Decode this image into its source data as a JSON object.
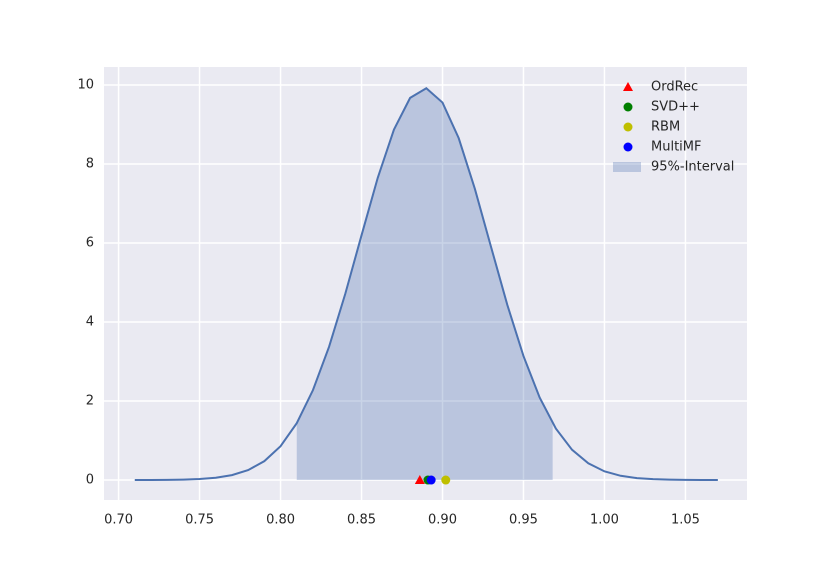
{
  "chart_data": {
    "type": "density",
    "curve": {
      "color": "#4c72b0",
      "x": [
        0.71,
        0.72,
        0.73,
        0.74,
        0.75,
        0.76,
        0.77,
        0.78,
        0.79,
        0.8,
        0.81,
        0.82,
        0.83,
        0.84,
        0.85,
        0.86,
        0.87,
        0.88,
        0.89,
        0.9,
        0.91,
        0.92,
        0.93,
        0.94,
        0.95,
        0.96,
        0.97,
        0.98,
        0.99,
        1.0,
        1.01,
        1.02,
        1.03,
        1.04,
        1.05,
        1.06,
        1.07
      ],
      "values": [
        0.0005,
        0.0014,
        0.004,
        0.01,
        0.025,
        0.058,
        0.124,
        0.251,
        0.478,
        0.855,
        1.438,
        2.275,
        3.379,
        4.719,
        6.195,
        7.649,
        8.87,
        9.674,
        9.917,
        9.556,
        8.655,
        7.369,
        5.897,
        4.435,
        3.137,
        2.086,
        1.303,
        0.765,
        0.423,
        0.219,
        0.107,
        0.049,
        0.021,
        0.009,
        0.003,
        0.001,
        0.0004
      ]
    },
    "interval": {
      "name": "95%-Interval",
      "range": [
        0.81,
        0.968
      ],
      "color": "#4c72b0"
    },
    "series": [
      {
        "name": "OrdRec",
        "color": "#ff0000",
        "marker": "triangle",
        "x": [
          0.886
        ],
        "values": [
          0
        ]
      },
      {
        "name": "SVD++",
        "color": "#007f00",
        "marker": "circle",
        "x": [
          0.891
        ],
        "values": [
          0
        ]
      },
      {
        "name": "RBM",
        "color": "#bfbf00",
        "marker": "circle",
        "x": [
          0.902
        ],
        "values": [
          0
        ]
      },
      {
        "name": "MultiMF",
        "color": "#0000ff",
        "marker": "circle",
        "x": [
          0.893
        ],
        "values": [
          0
        ]
      }
    ],
    "xlim": [
      0.691,
      1.088
    ],
    "ylim": [
      -0.506,
      10.456
    ],
    "xticks": [
      {
        "value": 0.7,
        "label": "0.70"
      },
      {
        "value": 0.75,
        "label": "0.75"
      },
      {
        "value": 0.8,
        "label": "0.80"
      },
      {
        "value": 0.85,
        "label": "0.85"
      },
      {
        "value": 0.9,
        "label": "0.90"
      },
      {
        "value": 0.95,
        "label": "0.95"
      },
      {
        "value": 1.0,
        "label": "1.00"
      },
      {
        "value": 1.05,
        "label": "1.05"
      }
    ],
    "yticks": [
      0,
      2,
      4,
      6,
      8,
      10
    ],
    "grid": true,
    "legend": "upper right"
  }
}
